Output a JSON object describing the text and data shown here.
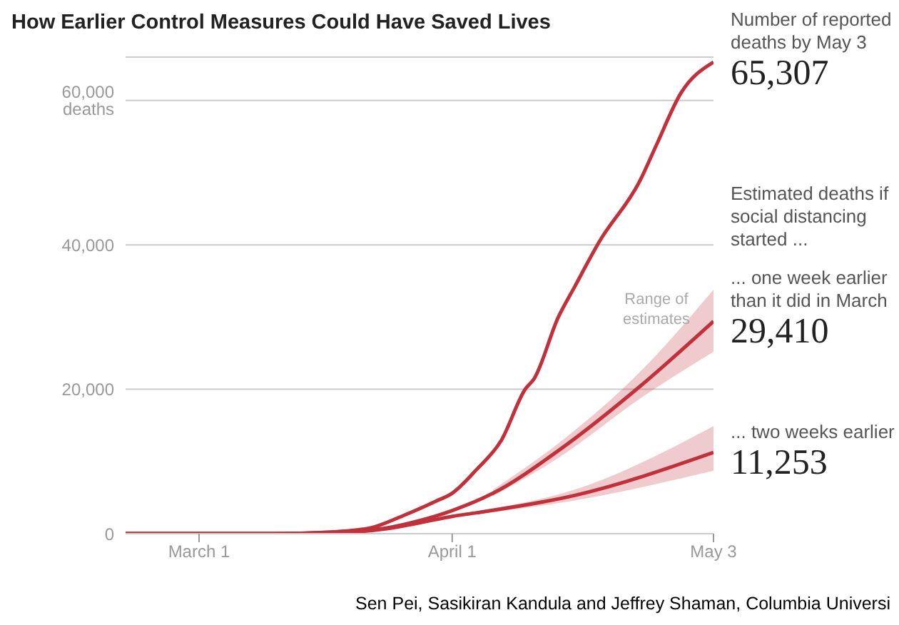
{
  "chart_data": {
    "type": "line",
    "title": "How Earlier Control Measures Could Have Saved Lives",
    "xlim": [
      "--02-20",
      "--05-03"
    ],
    "xticks": [
      {
        "value": "--03-01",
        "label": "March 1"
      },
      {
        "value": "--04-01",
        "label": "April 1"
      },
      {
        "value": "--05-03",
        "label": "May 3"
      }
    ],
    "ylim": [
      0,
      66000
    ],
    "yticks": [
      0,
      {
        "value": 20000,
        "label": "20,000"
      },
      {
        "value": 40000,
        "label": "40,000"
      },
      {
        "value": 60000,
        "label": "60,000 deaths"
      }
    ],
    "grid": "y",
    "series": [
      {
        "name": "Number of reported deaths by May 3",
        "color": "#c1313b",
        "x": [
          "--02-20",
          "--03-10",
          "--03-17",
          "--03-22",
          "--03-26",
          "--03-30",
          "--04-01",
          "--04-04",
          "--04-07",
          "--04-10",
          "--04-11",
          "--04-14",
          "--04-16",
          "--04-19",
          "--04-24",
          "--04-26",
          "--04-29",
          "--05-03"
        ],
        "values": [
          0,
          0,
          200,
          800,
          2500,
          4500,
          5600,
          8900,
          12900,
          20100,
          21400,
          30000,
          34200,
          40400,
          48900,
          53800,
          61000,
          65307
        ],
        "value_labels": [
          null,
          null,
          null,
          null,
          null,
          null,
          null,
          null,
          null,
          null,
          null,
          null,
          null,
          null,
          null,
          null,
          null,
          "65,307"
        ]
      },
      {
        "name": "... one week earlier than it did in March",
        "color": "#c1313b",
        "x": [
          "--02-20",
          "--03-10",
          "--03-17",
          "--03-24",
          "--03-28",
          "--04-01",
          "--04-06",
          "--04-14",
          "--04-24",
          "--05-03"
        ],
        "values": [
          0,
          0,
          200,
          800,
          1800,
          3200,
          5600,
          11500,
          20400,
          29410
        ],
        "lower": [
          null,
          null,
          null,
          null,
          null,
          null,
          5200,
          10500,
          18700,
          25200
        ],
        "upper": [
          null,
          null,
          null,
          null,
          null,
          null,
          6100,
          12500,
          22400,
          33800
        ],
        "value_labels": [
          null,
          null,
          null,
          null,
          null,
          null,
          null,
          null,
          null,
          "29,410"
        ]
      },
      {
        "name": "... two weeks earlier",
        "color": "#c1313b",
        "x": [
          "--02-20",
          "--03-10",
          "--03-17",
          "--03-24",
          "--03-28",
          "--04-01",
          "--04-04",
          "--04-16",
          "--05-03"
        ],
        "values": [
          0,
          0,
          100,
          700,
          1500,
          2400,
          2900,
          5300,
          11253
        ],
        "lower": [
          null,
          null,
          null,
          null,
          null,
          null,
          2700,
          4600,
          8720
        ],
        "upper": [
          null,
          null,
          null,
          null,
          null,
          null,
          3100,
          6100,
          14900
        ],
        "value_labels": [
          null,
          null,
          null,
          null,
          null,
          null,
          null,
          null,
          "11,253"
        ]
      }
    ],
    "annotations": [
      "Estimated deaths if social distancing started ...",
      "Range of estimates",
      "Sen Pei, Sasikiran Kandula and Jeffrey Shaman, Columbia Universi"
    ]
  }
}
